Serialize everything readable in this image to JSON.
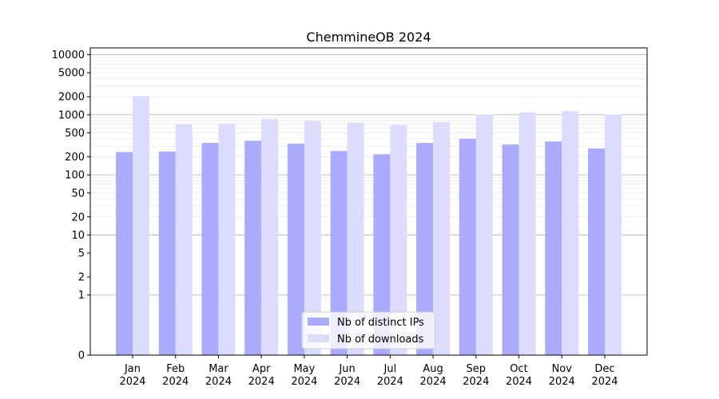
{
  "chart_data": {
    "type": "bar",
    "title": "ChemmineOB 2024",
    "categories": [
      [
        "Jan",
        "2024"
      ],
      [
        "Feb",
        "2024"
      ],
      [
        "Mar",
        "2024"
      ],
      [
        "Apr",
        "2024"
      ],
      [
        "May",
        "2024"
      ],
      [
        "Jun",
        "2024"
      ],
      [
        "Jul",
        "2024"
      ],
      [
        "Aug",
        "2024"
      ],
      [
        "Sep",
        "2024"
      ],
      [
        "Oct",
        "2024"
      ],
      [
        "Nov",
        "2024"
      ],
      [
        "Dec",
        "2024"
      ]
    ],
    "series": [
      {
        "name": "Nb of distinct IPs",
        "color": "#aaaaff",
        "values": [
          240,
          245,
          340,
          370,
          330,
          250,
          220,
          340,
          400,
          320,
          360,
          275
        ]
      },
      {
        "name": "Nb of downloads",
        "color": "#dcdcff",
        "values": [
          2050,
          700,
          720,
          850,
          790,
          740,
          680,
          760,
          1010,
          1090,
          1150,
          1010
        ]
      }
    ],
    "y_scale": "symlog",
    "ylim": [
      0,
      13000
    ],
    "y_ticks": [
      0,
      1,
      2,
      5,
      10,
      20,
      50,
      100,
      200,
      500,
      1000,
      2000,
      5000,
      10000
    ],
    "grid": true,
    "legend_position": "bottom-center"
  }
}
